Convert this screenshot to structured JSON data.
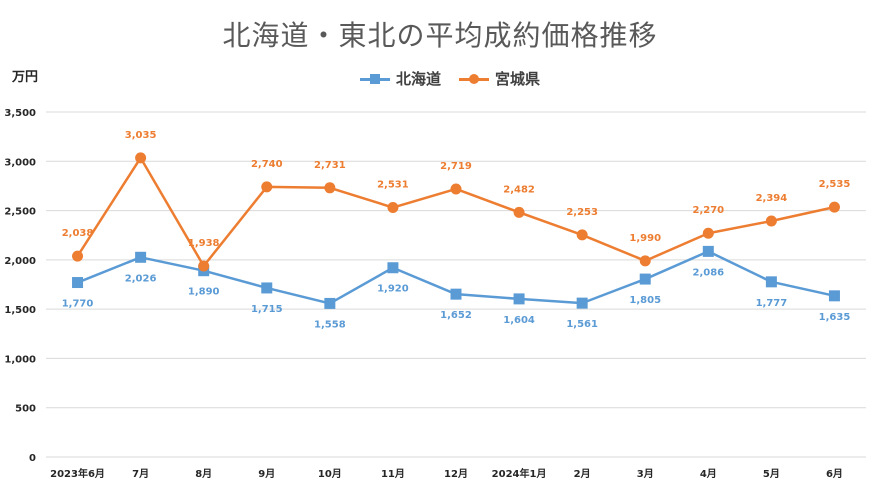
{
  "chart_data": {
    "type": "line",
    "title": "北海道・東北の平均成約価格推移",
    "y_unit_label": "万円",
    "ylim": [
      0,
      3500
    ],
    "y_ticks": [
      0,
      500,
      1000,
      1500,
      2000,
      2500,
      3000,
      3500
    ],
    "y_tick_labels": [
      "0",
      "500",
      "1,000",
      "1,500",
      "2,000",
      "2,500",
      "3,000",
      "3,500"
    ],
    "grid": true,
    "legend_position": "top-center",
    "categories": [
      "2023年6月",
      "7月",
      "8月",
      "9月",
      "10月",
      "11月",
      "12月",
      "2024年1月",
      "2月",
      "3月",
      "4月",
      "5月",
      "6月"
    ],
    "series": [
      {
        "name": "北海道",
        "color": "#5B9BD5",
        "marker": "square",
        "label_position": "below",
        "values": [
          1770,
          2026,
          1890,
          1715,
          1558,
          1920,
          1652,
          1604,
          1561,
          1805,
          2086,
          1777,
          1635
        ],
        "labels": [
          "1,770",
          "2,026",
          "1,890",
          "1,715",
          "1,558",
          "1,920",
          "1,652",
          "1,604",
          "1,561",
          "1,805",
          "2,086",
          "1,777",
          "1,635"
        ]
      },
      {
        "name": "宮城県",
        "color": "#ED7D31",
        "marker": "circle",
        "label_position": "above",
        "values": [
          2038,
          3035,
          1938,
          2740,
          2731,
          2531,
          2719,
          2482,
          2253,
          1990,
          2270,
          2394,
          2535
        ],
        "labels": [
          "2,038",
          "3,035",
          "1,938",
          "2,740",
          "2,731",
          "2,531",
          "2,719",
          "2,482",
          "2,253",
          "1,990",
          "2,270",
          "2,394",
          "2,535"
        ]
      }
    ]
  }
}
